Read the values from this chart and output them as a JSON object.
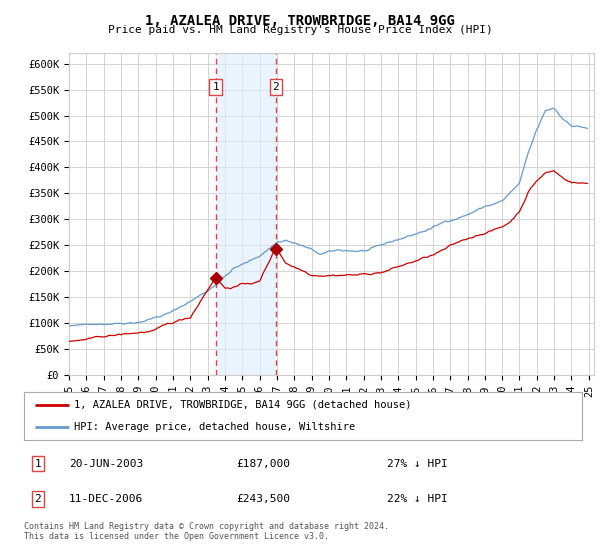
{
  "title": "1, AZALEA DRIVE, TROWBRIDGE, BA14 9GG",
  "subtitle": "Price paid vs. HM Land Registry's House Price Index (HPI)",
  "ylim": [
    0,
    620000
  ],
  "yticks": [
    0,
    50000,
    100000,
    150000,
    200000,
    250000,
    300000,
    350000,
    400000,
    450000,
    500000,
    550000,
    600000
  ],
  "ytick_labels": [
    "£0",
    "£50K",
    "£100K",
    "£150K",
    "£200K",
    "£250K",
    "£300K",
    "£350K",
    "£400K",
    "£450K",
    "£500K",
    "£550K",
    "£600K"
  ],
  "sale1_date": "20-JUN-2003",
  "sale1_price": 187000,
  "sale1_x": 2003.46,
  "sale1_pct": "27% ↓ HPI",
  "sale2_date": "11-DEC-2006",
  "sale2_price": 243500,
  "sale2_x": 2006.94,
  "sale2_pct": "22% ↓ HPI",
  "legend_line1": "1, AZALEA DRIVE, TROWBRIDGE, BA14 9GG (detached house)",
  "legend_line2": "HPI: Average price, detached house, Wiltshire",
  "footer": "Contains HM Land Registry data © Crown copyright and database right 2024.\nThis data is licensed under the Open Government Licence v3.0.",
  "hpi_color": "#6699cc",
  "price_color": "#cc0000",
  "shade_color": "#ddeeff",
  "dashed_color": "#dd4444",
  "marker_color": "#aa0000",
  "grid_color": "#cccccc",
  "background_color": "#ffffff",
  "xlim_start": 1995.0,
  "xlim_end": 2025.3
}
